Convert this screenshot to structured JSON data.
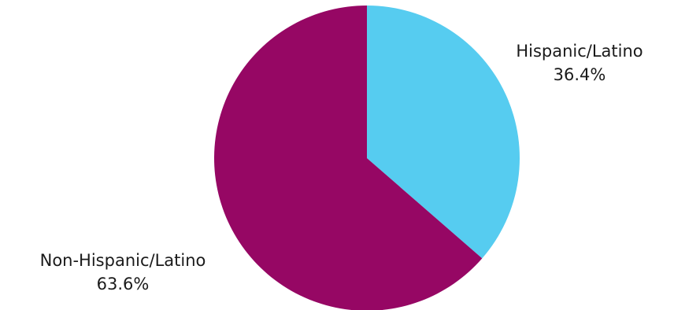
{
  "chart_data": {
    "type": "pie",
    "start_angle_deg": 0,
    "direction": "clockwise",
    "slices": [
      {
        "label": "Hispanic/Latino",
        "value": 36.4,
        "value_label": "36.4%",
        "color": "#56CCF0"
      },
      {
        "label": "Non-Hispanic/Latino",
        "value": 63.6,
        "value_label": "63.6%",
        "color": "#960764"
      }
    ]
  }
}
